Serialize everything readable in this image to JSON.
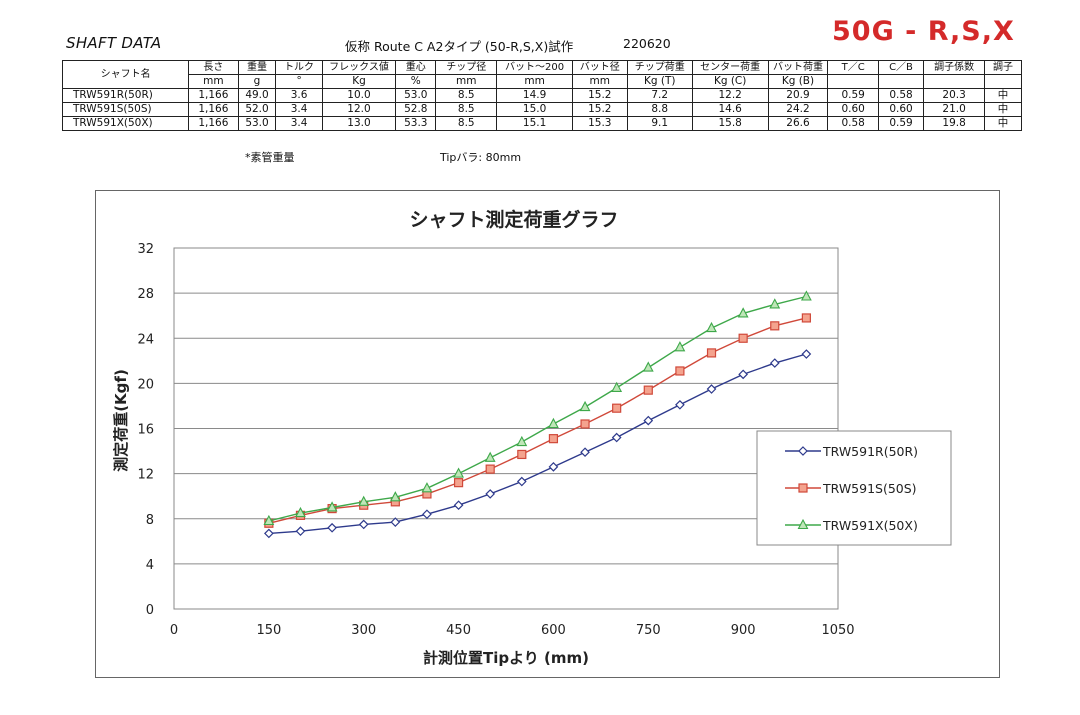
{
  "header": {
    "title": "SHAFT DATA",
    "provisional": "仮称 Route C A2タイプ (50-R,S,X)試作",
    "date": "220620",
    "badge": "50G - R,S,X",
    "badge_color": "#d42a2a"
  },
  "spec_table": {
    "headers": [
      "シャフト名",
      "長さ",
      "重量",
      "トルク",
      "フレックス値",
      "重心",
      "チップ径",
      "バット～200",
      "バット径",
      "チップ荷重",
      "センター荷重",
      "バット荷重",
      "T／C",
      "C／B",
      "調子係数",
      "調子"
    ],
    "units": [
      "",
      "mm",
      "g",
      "°",
      "Kg",
      "%",
      "mm",
      "mm",
      "mm",
      "Kg (T)",
      "Kg (C)",
      "Kg (B)",
      "",
      "",
      "",
      ""
    ],
    "rows": [
      [
        "TRW591R(50R)",
        "1,166",
        "49.0",
        "3.6",
        "10.0",
        "53.0",
        "8.5",
        "14.9",
        "15.2",
        "7.2",
        "12.2",
        "20.9",
        "0.59",
        "0.58",
        "20.3",
        "中"
      ],
      [
        "TRW591S(50S)",
        "1,166",
        "52.0",
        "3.4",
        "12.0",
        "52.8",
        "8.5",
        "15.0",
        "15.2",
        "8.8",
        "14.6",
        "24.2",
        "0.60",
        "0.60",
        "21.0",
        "中"
      ],
      [
        "TRW591X(50X)",
        "1,166",
        "53.0",
        "3.4",
        "13.0",
        "53.3",
        "8.5",
        "15.1",
        "15.3",
        "9.1",
        "15.8",
        "26.6",
        "0.58",
        "0.59",
        "19.8",
        "中"
      ]
    ],
    "notes": [
      "*素管重量",
      "Tipバラ: 80mm"
    ]
  },
  "chart_data": {
    "type": "line",
    "title": "シャフト測定荷重グラフ",
    "xlabel": "計測位置Tipより (mm)",
    "ylabel": "測定荷重(Kgf)",
    "xlim": [
      0,
      1050
    ],
    "ylim": [
      0,
      32
    ],
    "xticks": [
      0,
      150,
      300,
      450,
      600,
      750,
      900,
      1050
    ],
    "yticks": [
      0,
      4,
      8,
      12,
      16,
      20,
      24,
      28,
      32
    ],
    "grid": "horizontal",
    "legend_position": "right",
    "x": [
      150,
      200,
      250,
      300,
      350,
      400,
      450,
      500,
      550,
      600,
      650,
      700,
      750,
      800,
      850,
      900,
      950,
      1000
    ],
    "series": [
      {
        "name": "TRW591R(50R)",
        "color": "#2e3a8c",
        "marker": "diamond",
        "values": [
          6.7,
          6.9,
          7.2,
          7.5,
          7.7,
          8.4,
          9.2,
          10.2,
          11.3,
          12.6,
          13.9,
          15.2,
          16.7,
          18.1,
          19.5,
          20.8,
          21.8,
          22.6
        ]
      },
      {
        "name": "TRW591S(50S)",
        "color": "#d0493a",
        "marker": "square",
        "values": [
          7.6,
          8.3,
          8.9,
          9.2,
          9.5,
          10.2,
          11.2,
          12.4,
          13.7,
          15.1,
          16.4,
          17.8,
          19.4,
          21.1,
          22.7,
          24.0,
          25.1,
          25.8
        ]
      },
      {
        "name": "TRW591X(50X)",
        "color": "#3ea84a",
        "marker": "triangle",
        "values": [
          7.8,
          8.5,
          9.0,
          9.5,
          9.9,
          10.7,
          12.0,
          13.4,
          14.8,
          16.4,
          17.9,
          19.6,
          21.4,
          23.2,
          24.9,
          26.2,
          27.0,
          27.7
        ]
      }
    ]
  }
}
